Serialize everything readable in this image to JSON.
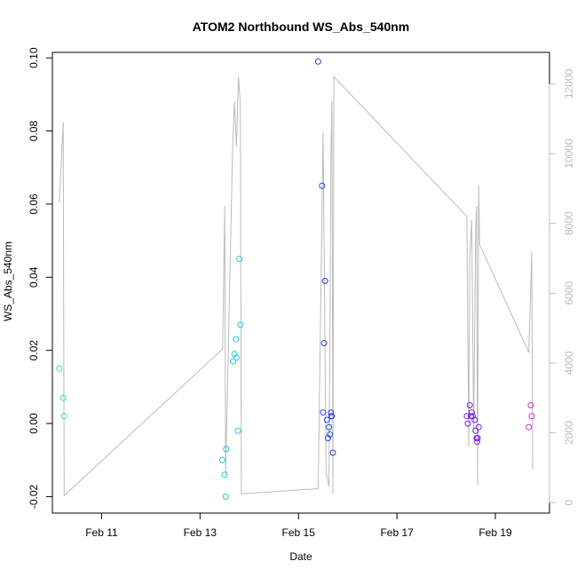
{
  "chart_data": {
    "type": "scatter",
    "title": "ATOM2 Northbound WS_Abs_540nm",
    "xlabel": "Date",
    "ylabel": "WS_Abs_540nm",
    "x_unit": "days (February)",
    "xlim": [
      10.0,
      20.1
    ],
    "ylim": [
      -0.0245,
      0.1015
    ],
    "y2lim": [
      -300,
      12900
    ],
    "grid": false,
    "x_ticks": [
      {
        "value": 11,
        "label": "Feb 11"
      },
      {
        "value": 13,
        "label": "Feb 13"
      },
      {
        "value": 15,
        "label": "Feb 15"
      },
      {
        "value": 17,
        "label": "Feb 17"
      },
      {
        "value": 19,
        "label": "Feb 19"
      }
    ],
    "y_ticks": [
      {
        "value": -0.02,
        "label": "-0.02"
      },
      {
        "value": 0.0,
        "label": "0.00"
      },
      {
        "value": 0.02,
        "label": "0.02"
      },
      {
        "value": 0.04,
        "label": "0.04"
      },
      {
        "value": 0.06,
        "label": "0.06"
      },
      {
        "value": 0.08,
        "label": "0.08"
      },
      {
        "value": 0.1,
        "label": "0.10"
      }
    ],
    "y2_ticks": [
      {
        "value": 0,
        "label": "0"
      },
      {
        "value": 2000,
        "label": "2000"
      },
      {
        "value": 4000,
        "label": "4000"
      },
      {
        "value": 6000,
        "label": "6000"
      },
      {
        "value": 8000,
        "label": "8000"
      },
      {
        "value": 10000,
        "label": "10000"
      },
      {
        "value": 12000,
        "label": "12000"
      }
    ],
    "points": [
      {
        "x": 10.14,
        "y": 0.015,
        "color": "#33e6a0"
      },
      {
        "x": 10.22,
        "y": 0.007,
        "color": "#33e6a0"
      },
      {
        "x": 10.24,
        "y": 0.002,
        "color": "#33e6a0"
      },
      {
        "x": 13.45,
        "y": -0.01,
        "color": "#1fc8e0"
      },
      {
        "x": 13.5,
        "y": -0.014,
        "color": "#1fc8e0"
      },
      {
        "x": 13.52,
        "y": -0.02,
        "color": "#1fc8e0"
      },
      {
        "x": 13.53,
        "y": -0.007,
        "color": "#1fc8e0"
      },
      {
        "x": 13.67,
        "y": 0.017,
        "color": "#1fc8e0"
      },
      {
        "x": 13.7,
        "y": 0.019,
        "color": "#1fc8e0"
      },
      {
        "x": 13.73,
        "y": 0.023,
        "color": "#1fc8e0"
      },
      {
        "x": 13.74,
        "y": 0.018,
        "color": "#1fc8e0"
      },
      {
        "x": 13.77,
        "y": -0.002,
        "color": "#1fc8e0"
      },
      {
        "x": 13.8,
        "y": 0.045,
        "color": "#1fc8e0"
      },
      {
        "x": 13.82,
        "y": 0.027,
        "color": "#1fc8e0"
      },
      {
        "x": 15.4,
        "y": 0.099,
        "color": "#2244dd"
      },
      {
        "x": 15.48,
        "y": 0.065,
        "color": "#2244dd"
      },
      {
        "x": 15.5,
        "y": 0.003,
        "color": "#2244dd"
      },
      {
        "x": 15.52,
        "y": 0.022,
        "color": "#2244dd"
      },
      {
        "x": 15.54,
        "y": 0.039,
        "color": "#2244dd"
      },
      {
        "x": 15.58,
        "y": 0.001,
        "color": "#2244dd"
      },
      {
        "x": 15.6,
        "y": -0.004,
        "color": "#2244dd"
      },
      {
        "x": 15.62,
        "y": -0.001,
        "color": "#2244dd"
      },
      {
        "x": 15.64,
        "y": -0.003,
        "color": "#2244dd"
      },
      {
        "x": 15.66,
        "y": 0.003,
        "color": "#2244dd"
      },
      {
        "x": 15.67,
        "y": 0.002,
        "color": "#2244dd"
      },
      {
        "x": 15.68,
        "y": 0.002,
        "color": "#2244dd"
      },
      {
        "x": 15.7,
        "y": -0.008,
        "color": "#2244dd"
      },
      {
        "x": 18.42,
        "y": 0.002,
        "color": "#7a22dd"
      },
      {
        "x": 18.44,
        "y": 0.0,
        "color": "#7a22dd"
      },
      {
        "x": 18.48,
        "y": 0.005,
        "color": "#7a22dd"
      },
      {
        "x": 18.5,
        "y": 0.002,
        "color": "#7a22dd"
      },
      {
        "x": 18.52,
        "y": 0.003,
        "color": "#7a22dd"
      },
      {
        "x": 18.54,
        "y": 0.002,
        "color": "#7a22dd"
      },
      {
        "x": 18.58,
        "y": 0.001,
        "color": "#7a22dd"
      },
      {
        "x": 18.6,
        "y": -0.002,
        "color": "#7a22dd"
      },
      {
        "x": 18.62,
        "y": -0.004,
        "color": "#7a22dd"
      },
      {
        "x": 18.63,
        "y": -0.005,
        "color": "#7a22dd"
      },
      {
        "x": 18.64,
        "y": -0.004,
        "color": "#7a22dd"
      },
      {
        "x": 18.66,
        "y": -0.001,
        "color": "#7a22dd"
      },
      {
        "x": 19.68,
        "y": -0.001,
        "color": "#d02ad8"
      },
      {
        "x": 19.72,
        "y": 0.005,
        "color": "#d02ad8"
      },
      {
        "x": 19.74,
        "y": 0.002,
        "color": "#d02ad8"
      }
    ],
    "secondary_line": {
      "color": "#bbbbbb",
      "points": [
        [
          10.14,
          8600
        ],
        [
          10.22,
          10900
        ],
        [
          10.24,
          200
        ],
        [
          13.46,
          4400
        ],
        [
          13.5,
          8500
        ],
        [
          13.52,
          800
        ],
        [
          13.66,
          10000
        ],
        [
          13.7,
          11500
        ],
        [
          13.74,
          10200
        ],
        [
          13.78,
          12200
        ],
        [
          13.82,
          11400
        ],
        [
          13.84,
          250
        ],
        [
          15.4,
          400
        ],
        [
          15.5,
          10600
        ],
        [
          15.56,
          900
        ],
        [
          15.62,
          450
        ],
        [
          15.66,
          10000
        ],
        [
          15.68,
          11500
        ],
        [
          15.7,
          250
        ],
        [
          15.72,
          12200
        ],
        [
          18.42,
          8200
        ],
        [
          18.46,
          1600
        ],
        [
          18.48,
          7000
        ],
        [
          18.52,
          8100
        ],
        [
          18.56,
          2000
        ],
        [
          18.6,
          7800
        ],
        [
          18.62,
          8500
        ],
        [
          18.64,
          500
        ],
        [
          18.66,
          9100
        ],
        [
          18.68,
          7400
        ],
        [
          19.68,
          4300
        ],
        [
          19.74,
          7200
        ],
        [
          19.76,
          950
        ]
      ]
    }
  }
}
